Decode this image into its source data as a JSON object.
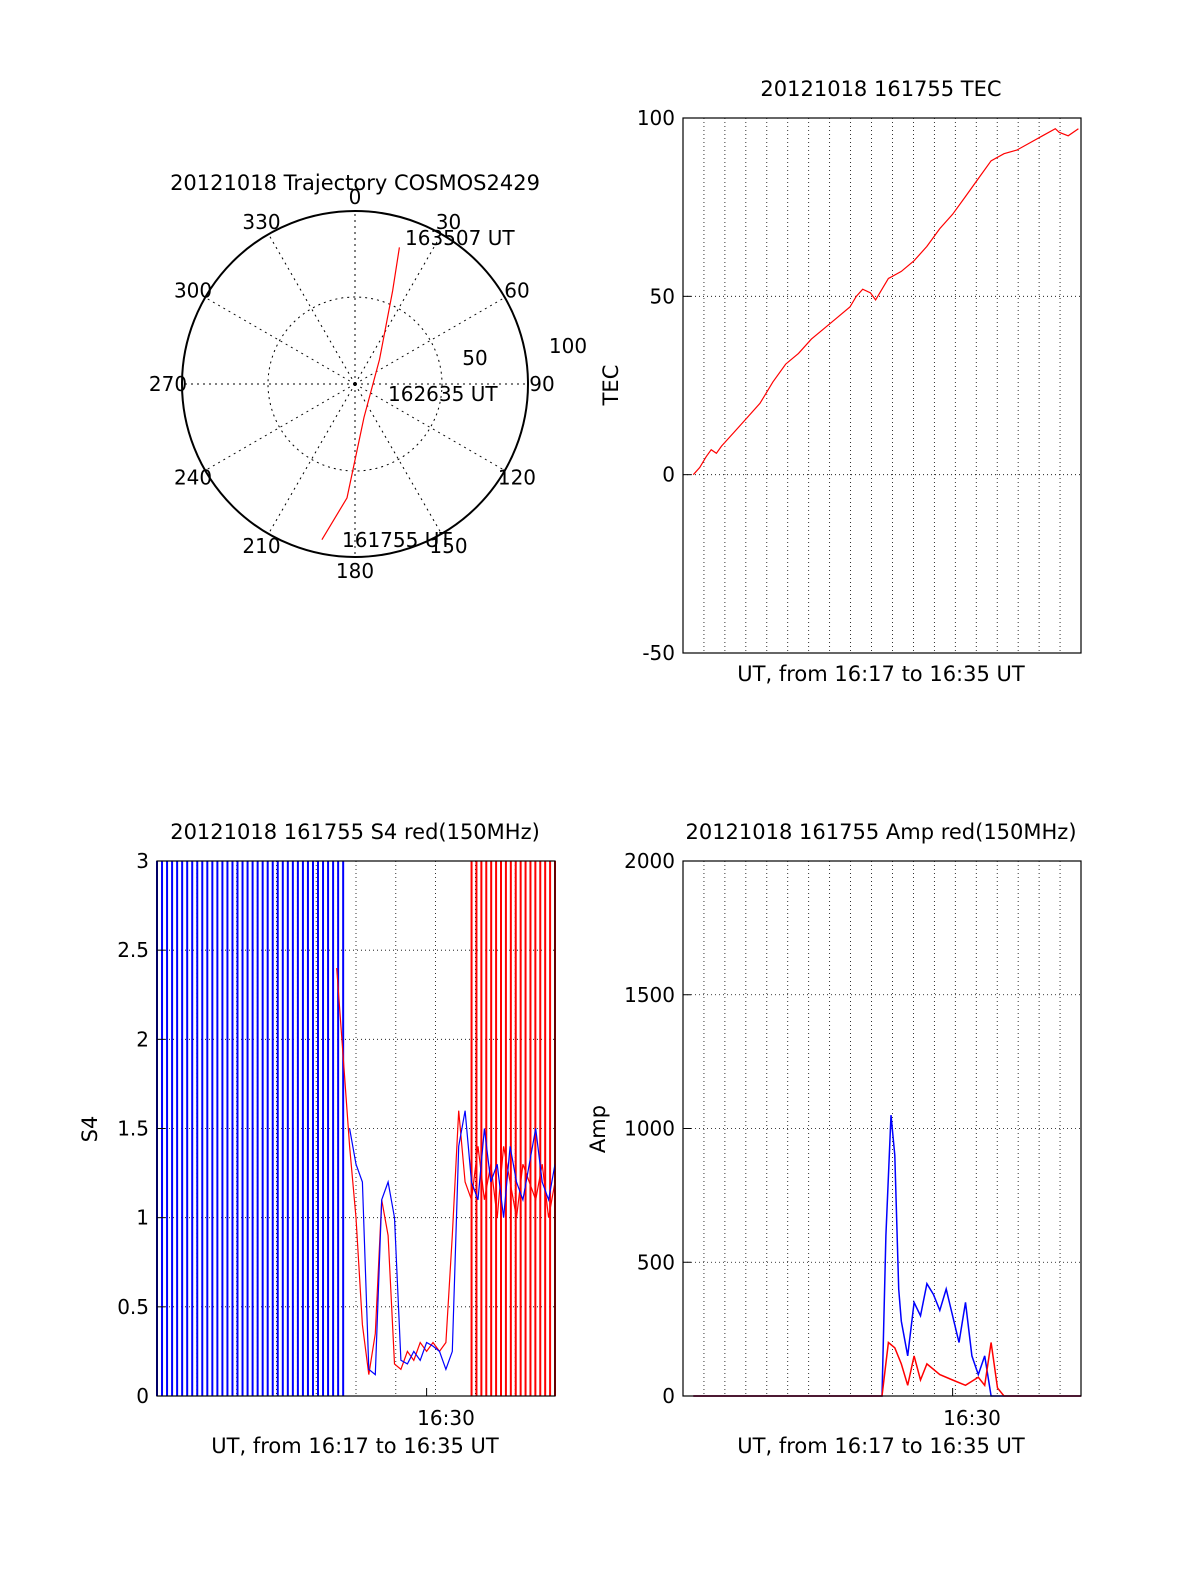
{
  "figure": {
    "polar_title": "20121018 Trajectory COSMOS2429",
    "polar_angle_labels": [
      "0",
      "30",
      "60",
      "90",
      "120",
      "150",
      "180",
      "210",
      "240",
      "270",
      "300",
      "330"
    ],
    "polar_ring_labels": [
      "50",
      "100"
    ],
    "trajectory_time_labels": [
      "163507 UT",
      "162635 UT",
      "161755 UT"
    ],
    "tec_title": "20121018 161755 TEC",
    "s4_title": "20121018 161755 S4 red(150MHz)",
    "amp_title": "20121018 161755 Amp red(150MHz)"
  },
  "chart_data": [
    {
      "type": "polar",
      "title": "20121018 Trajectory COSMOS2429",
      "angle_ticks": [
        0,
        30,
        60,
        90,
        120,
        150,
        180,
        210,
        240,
        270,
        300,
        330
      ],
      "radius_ticks": [
        50,
        100
      ],
      "r_max": 100,
      "series": [
        {
          "color": "#ff0000",
          "points": [
            {
              "azimuth": 192,
              "distance": 92,
              "label": "161755 UT"
            },
            {
              "azimuth": 184,
              "distance": 66
            },
            {
              "azimuth": 165,
              "distance": 20
            },
            {
              "azimuth": 45,
              "distance": 20
            },
            {
              "azimuth": 22,
              "distance": 58
            },
            {
              "azimuth": 18,
              "distance": 83,
              "label": "163507 UT"
            }
          ]
        }
      ],
      "annotations": [
        {
          "text": "162635 UT",
          "azimuth": 90,
          "distance": 26
        }
      ]
    },
    {
      "type": "line",
      "title": "20121018 161755 TEC",
      "xlabel": "UT, from 16:17 to 16:35 UT",
      "ylabel": "TEC",
      "xlim": [
        16.29,
        16.6
      ],
      "ylim": [
        -50,
        100
      ],
      "yticks": [
        -50,
        0,
        50,
        100
      ],
      "grid": true,
      "series": [
        {
          "color": "#ff0000",
          "x": [
            16.298,
            16.303,
            16.308,
            16.312,
            16.316,
            16.32,
            16.33,
            16.34,
            16.35,
            16.36,
            16.37,
            16.38,
            16.39,
            16.4,
            16.41,
            16.42,
            16.425,
            16.43,
            16.436,
            16.44,
            16.445,
            16.45,
            16.46,
            16.47,
            16.48,
            16.49,
            16.5,
            16.51,
            16.52,
            16.53,
            16.54,
            16.55,
            16.56,
            16.57,
            16.58,
            16.583,
            16.59,
            16.598
          ],
          "y": [
            0,
            2,
            5,
            7,
            6,
            8,
            12,
            16,
            20,
            26,
            31,
            34,
            38,
            41,
            44,
            47,
            50,
            52,
            51,
            49,
            52,
            55,
            57,
            60,
            64,
            69,
            73,
            78,
            83,
            88,
            90,
            91,
            93,
            95,
            97,
            96,
            95,
            97
          ]
        }
      ]
    },
    {
      "type": "line",
      "title": "20121018 161755 S4 red(150MHz)",
      "xlabel": "UT, from 16:17 to 16:35 UT",
      "ylabel": "S4",
      "xlim": [
        16.29,
        16.6
      ],
      "ylim": [
        0,
        3
      ],
      "yticks": [
        0,
        0.5,
        1,
        1.5,
        2,
        2.5,
        3
      ],
      "xtick_labels": [
        "16:30"
      ],
      "xtick_values": [
        16.5
      ],
      "grid": true,
      "series": [
        {
          "name": "red",
          "color": "#ff0000",
          "x": [
            16.43,
            16.435,
            16.44,
            16.445,
            16.45,
            16.455,
            16.46,
            16.465,
            16.47,
            16.475,
            16.48,
            16.485,
            16.49,
            16.495,
            16.5,
            16.505,
            16.51,
            16.515,
            16.52,
            16.525,
            16.53,
            16.535,
            16.54,
            16.545,
            16.55,
            16.555,
            16.56,
            16.565,
            16.57,
            16.575,
            16.58,
            16.585,
            16.59,
            16.595,
            16.6
          ],
          "y": [
            2.4,
            1.9,
            1.4,
            1.0,
            0.4,
            0.12,
            0.35,
            1.1,
            0.9,
            0.18,
            0.15,
            0.25,
            0.2,
            0.3,
            0.25,
            0.3,
            0.25,
            0.3,
            0.9,
            1.6,
            1.2,
            1.1,
            1.4,
            1.1,
            1.3,
            1.0,
            1.4,
            1.2,
            1.0,
            1.3,
            1.2,
            1.1,
            1.3,
            1.0,
            1.2
          ]
        },
        {
          "name": "blue",
          "color": "#0000ff",
          "x": [
            16.44,
            16.445,
            16.45,
            16.455,
            16.46,
            16.465,
            16.47,
            16.475,
            16.48,
            16.485,
            16.49,
            16.495,
            16.5,
            16.505,
            16.51,
            16.515,
            16.52,
            16.525,
            16.53,
            16.535,
            16.54,
            16.545,
            16.55,
            16.555,
            16.56,
            16.565,
            16.57,
            16.575,
            16.58,
            16.585,
            16.59,
            16.595,
            16.6
          ],
          "y": [
            1.5,
            1.3,
            1.2,
            0.15,
            0.12,
            1.1,
            1.2,
            1.0,
            0.2,
            0.18,
            0.25,
            0.2,
            0.3,
            0.28,
            0.25,
            0.15,
            0.25,
            1.4,
            1.6,
            1.2,
            1.1,
            1.5,
            1.2,
            1.3,
            1.0,
            1.4,
            1.2,
            1.1,
            1.3,
            1.5,
            1.2,
            1.1,
            1.3
          ]
        }
      ],
      "spike_regions": [
        {
          "color": "#0000ff",
          "x": [
            16.29,
            16.435
          ],
          "y": [
            0,
            3
          ]
        },
        {
          "color": "#ff0000",
          "x": [
            16.535,
            16.6
          ],
          "y": [
            0,
            3
          ]
        }
      ]
    },
    {
      "type": "line",
      "title": "20121018 161755 Amp red(150MHz)",
      "xlabel": "UT, from 16:17 to 16:35 UT",
      "ylabel": "Amp",
      "xlim": [
        16.29,
        16.6
      ],
      "ylim": [
        0,
        2000
      ],
      "yticks": [
        0,
        500,
        1000,
        1500,
        2000
      ],
      "xtick_labels": [
        "16:30"
      ],
      "xtick_values": [
        16.5
      ],
      "grid": true,
      "series": [
        {
          "name": "blue",
          "color": "#0000ff",
          "x": [
            16.298,
            16.44,
            16.445,
            16.448,
            16.452,
            16.455,
            16.458,
            16.46,
            16.465,
            16.47,
            16.475,
            16.48,
            16.485,
            16.49,
            16.495,
            16.5,
            16.505,
            16.51,
            16.515,
            16.52,
            16.525,
            16.53,
            16.535,
            16.54,
            16.6
          ],
          "y": [
            0,
            0,
            0,
            600,
            1050,
            900,
            400,
            280,
            150,
            350,
            300,
            420,
            380,
            320,
            400,
            300,
            200,
            350,
            150,
            80,
            150,
            0,
            0,
            0,
            0
          ]
        },
        {
          "name": "red",
          "color": "#ff0000",
          "x": [
            16.298,
            16.44,
            16.445,
            16.45,
            16.455,
            16.46,
            16.465,
            16.47,
            16.475,
            16.48,
            16.49,
            16.5,
            16.51,
            16.52,
            16.525,
            16.53,
            16.535,
            16.54,
            16.6
          ],
          "y": [
            0,
            0,
            0,
            200,
            180,
            120,
            40,
            150,
            60,
            120,
            80,
            60,
            40,
            70,
            40,
            200,
            30,
            0,
            0
          ]
        }
      ]
    }
  ]
}
